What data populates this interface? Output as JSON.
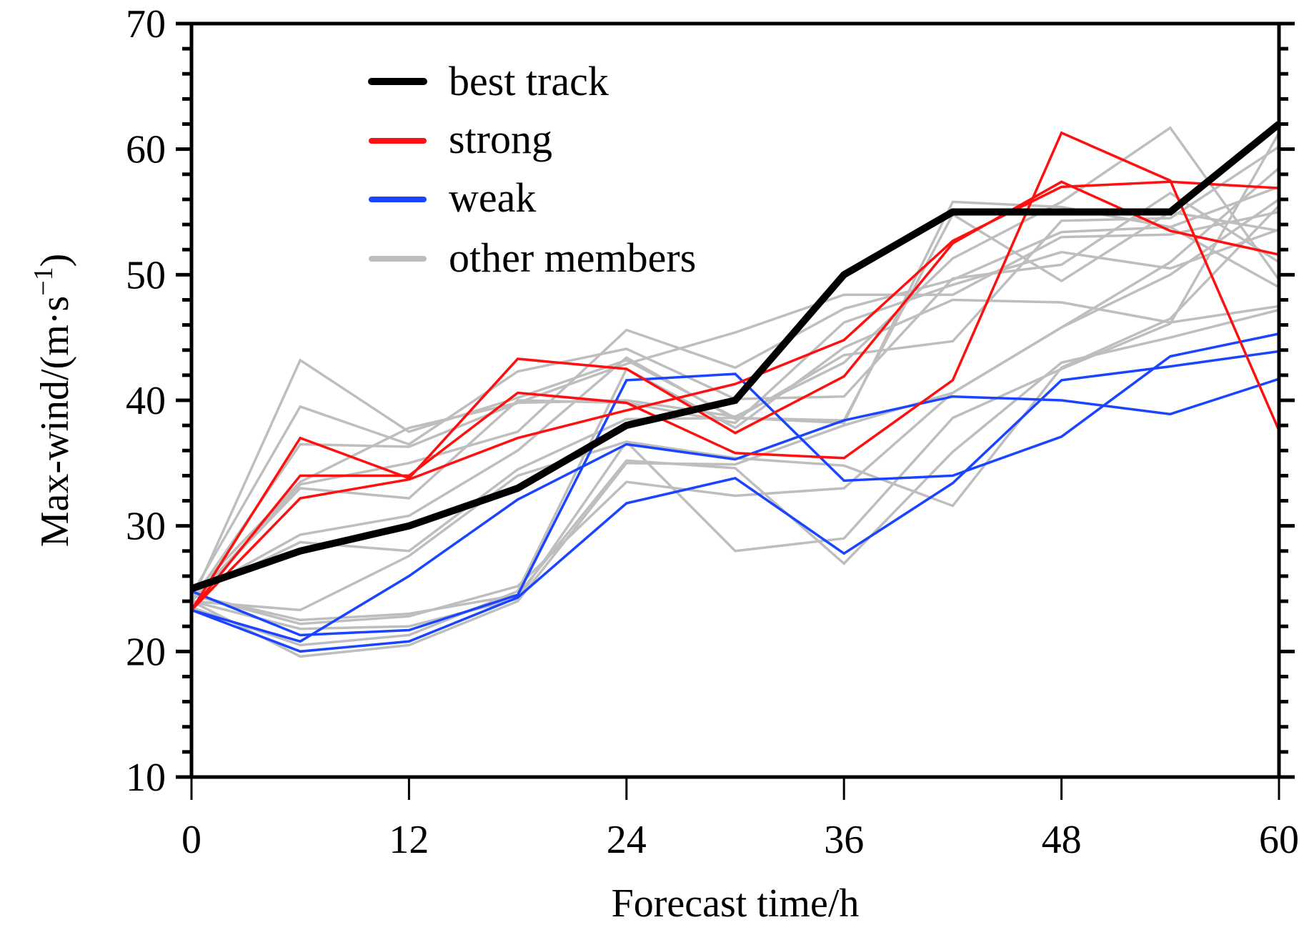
{
  "chart_data": {
    "type": "line",
    "title": "",
    "xlabel": "Forecast time/h",
    "ylabel_main": "Max-wind/(m·s",
    "ylabel_sup": "−1",
    "ylabel_close": ")",
    "ylabel": "Max-wind/(m·s⁻¹)",
    "xlim": [
      0,
      60
    ],
    "ylim": [
      10,
      70
    ],
    "x": [
      0,
      6,
      12,
      18,
      24,
      30,
      36,
      42,
      48,
      54,
      60
    ],
    "x_ticks": [
      0,
      12,
      24,
      36,
      48,
      60
    ],
    "x_tick_labels": [
      "0",
      "12",
      "24",
      "36",
      "48",
      "60"
    ],
    "y_ticks": [
      10,
      20,
      30,
      40,
      50,
      60,
      70
    ],
    "y_tick_labels": [
      "10",
      "20",
      "30",
      "40",
      "50",
      "60",
      "70"
    ],
    "y_minor_step": 2,
    "grid": false,
    "legend_position": "top-left",
    "legend": [
      {
        "label": "best track",
        "color": "#000000",
        "group": "best"
      },
      {
        "label": "strong",
        "color": "#ff1010",
        "group": "strong"
      },
      {
        "label": "weak",
        "color": "#1a44ff",
        "group": "weak"
      },
      {
        "label": "other members",
        "color": "#bebebe",
        "group": "other"
      }
    ],
    "colors": {
      "best": "#000000",
      "strong": "#ff1010",
      "weak": "#1a44ff",
      "other": "#bebebe"
    },
    "series": [
      {
        "name": "other member 1",
        "group": "other",
        "values": [
          24.0,
          43.2,
          37.5,
          40.2,
          43.2,
          38.6,
          38.2,
          55.8,
          55.4,
          53.8,
          49.0
        ]
      },
      {
        "name": "other member 2",
        "group": "other",
        "values": [
          24.5,
          39.5,
          36.5,
          42.3,
          44.1,
          40.1,
          40.3,
          49.7,
          50.8,
          56.5,
          51.0
        ]
      },
      {
        "name": "other member 3",
        "group": "other",
        "values": [
          24.0,
          36.5,
          36.3,
          39.8,
          42.9,
          45.4,
          48.4,
          48.4,
          53.0,
          53.2,
          55.0
        ]
      },
      {
        "name": "other member 4",
        "group": "other",
        "values": [
          24.5,
          33.5,
          37.8,
          39.8,
          40.0,
          38.7,
          43.0,
          51.3,
          55.8,
          61.7,
          49.6
        ]
      },
      {
        "name": "other member 5",
        "group": "other",
        "values": [
          24.0,
          33.0,
          32.2,
          40.0,
          39.8,
          38.2,
          46.2,
          49.2,
          51.8,
          50.5,
          53.6
        ]
      },
      {
        "name": "other member 6",
        "group": "other",
        "values": [
          24.0,
          33.3,
          35.0,
          37.5,
          45.6,
          42.6,
          47.3,
          49.6,
          53.4,
          53.8,
          57.0
        ]
      },
      {
        "name": "other member 7",
        "group": "other",
        "values": [
          24.5,
          29.3,
          30.8,
          36.0,
          43.4,
          38.5,
          43.6,
          44.7,
          54.3,
          54.5,
          60.2
        ]
      },
      {
        "name": "other member 8",
        "group": "other",
        "values": [
          24.5,
          28.7,
          28.0,
          34.5,
          38.5,
          38.6,
          38.4,
          54.8,
          49.5,
          55.0,
          53.5
        ]
      },
      {
        "name": "other member 9",
        "group": "other",
        "values": [
          24.0,
          23.3,
          27.6,
          34.0,
          36.7,
          28.0,
          29.0,
          38.6,
          42.5,
          46.1,
          61.3
        ]
      },
      {
        "name": "other member 10",
        "group": "other",
        "values": [
          24.5,
          22.5,
          23.0,
          24.5,
          35.2,
          34.6,
          27.0,
          35.9,
          43.0,
          45.0,
          47.2
        ]
      },
      {
        "name": "other member 11",
        "group": "other",
        "values": [
          24.5,
          22.2,
          22.8,
          25.2,
          33.5,
          32.4,
          33.0,
          40.6,
          45.8,
          51.0,
          58.5
        ]
      },
      {
        "name": "other member 12",
        "group": "other",
        "values": [
          24.0,
          21.8,
          22.0,
          24.2,
          36.7,
          35.4,
          34.8,
          31.6,
          42.6,
          46.5,
          55.5
        ]
      },
      {
        "name": "other member 13",
        "group": "other",
        "values": [
          24.0,
          19.6,
          20.5,
          24.0,
          35.0,
          34.9,
          38.0,
          40.6,
          45.8,
          50.0,
          56.0
        ]
      },
      {
        "name": "other member 14",
        "group": "other",
        "values": [
          23.5,
          20.5,
          21.3,
          24.8,
          42.5,
          37.8,
          44.2,
          48.0,
          47.8,
          46.2,
          47.5
        ]
      },
      {
        "name": "weak member 1",
        "group": "weak",
        "values": [
          24.8,
          21.3,
          21.7,
          24.5,
          41.6,
          42.1,
          33.6,
          34.0,
          37.1,
          43.5,
          45.3
        ]
      },
      {
        "name": "weak member 2",
        "group": "weak",
        "values": [
          23.3,
          20.0,
          20.8,
          24.3,
          31.8,
          33.8,
          27.8,
          33.4,
          41.6,
          42.7,
          43.9
        ]
      },
      {
        "name": "weak member 3",
        "group": "weak",
        "values": [
          23.3,
          20.8,
          26.0,
          32.1,
          36.5,
          35.3,
          38.4,
          40.3,
          40.0,
          38.9,
          41.7
        ]
      },
      {
        "name": "strong member 1",
        "group": "strong",
        "values": [
          23.3,
          37.0,
          33.8,
          43.3,
          42.5,
          37.4,
          41.9,
          52.5,
          57.4,
          53.5,
          51.6
        ]
      },
      {
        "name": "strong member 2",
        "group": "strong",
        "values": [
          23.3,
          34.0,
          34.0,
          40.6,
          39.8,
          35.8,
          35.4,
          41.6,
          61.3,
          57.5,
          37.6
        ]
      },
      {
        "name": "strong member 3",
        "group": "strong",
        "values": [
          23.3,
          32.2,
          33.7,
          37.0,
          39.2,
          41.3,
          44.8,
          52.7,
          57.0,
          57.4,
          56.9
        ]
      },
      {
        "name": "best track",
        "group": "best",
        "values": [
          25,
          28,
          30,
          33,
          38,
          40,
          50,
          55,
          55,
          55,
          62
        ]
      }
    ]
  }
}
